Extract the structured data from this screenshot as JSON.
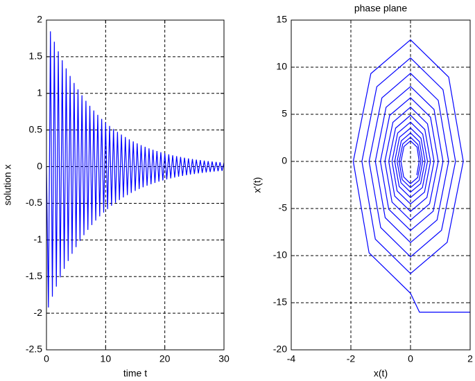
{
  "chart_data": [
    {
      "type": "line",
      "xlabel": "time t",
      "ylabel": "solution x",
      "color": "#0000ff",
      "grid": true,
      "xlim": [
        0,
        30
      ],
      "ylim": [
        -2.5,
        2
      ],
      "xticks": [
        0,
        10,
        20,
        30
      ],
      "yticks": [
        -2.5,
        -2,
        -1.5,
        -1,
        -0.5,
        0,
        0.5,
        1,
        1.5,
        2
      ],
      "x": [
        0,
        0.33,
        0.67,
        1,
        1.33,
        1.67,
        2,
        2.33,
        2.67,
        3,
        3.33,
        3.67,
        4,
        4.33,
        4.67,
        5,
        5.33,
        5.67,
        6,
        6.33,
        6.67,
        7,
        7.33,
        7.67,
        8,
        8.33,
        8.67,
        9,
        9.33,
        9.67,
        10,
        10.33,
        10.67,
        11,
        11.33,
        11.67,
        12,
        12.33,
        12.67,
        13,
        13.33,
        13.67,
        14,
        14.33,
        14.67,
        15,
        15.33,
        15.67,
        16,
        16.33,
        16.67,
        17,
        17.33,
        17.67,
        18,
        18.33,
        18.67,
        19,
        19.33,
        19.67,
        20,
        20.33,
        20.67,
        21,
        21.33,
        21.67,
        22,
        22.33,
        22.67,
        23,
        23.33,
        23.67,
        24,
        24.33,
        24.67,
        25,
        25.33,
        25.67,
        26,
        26.33,
        26.67,
        27,
        27.33,
        27.67,
        28,
        28.33,
        28.67,
        29,
        29.33,
        29.67,
        30
      ],
      "values": [
        0,
        -1.922,
        1.846,
        -1.774,
        1.704,
        -1.637,
        1.573,
        -1.511,
        1.452,
        -1.395,
        1.341,
        -1.288,
        1.238,
        -1.189,
        1.142,
        -1.098,
        1.055,
        -1.013,
        0.974,
        -0.935,
        0.899,
        -0.863,
        0.83,
        -0.797,
        0.766,
        -0.736,
        0.707,
        -0.679,
        0.652,
        -0.627,
        0.602,
        -0.579,
        0.556,
        -0.534,
        0.513,
        -0.493,
        0.474,
        -0.455,
        0.437,
        -0.42,
        0.404,
        -0.388,
        0.373,
        -0.358,
        0.344,
        -0.331,
        0.318,
        -0.305,
        0.293,
        -0.282,
        0.271,
        -0.26,
        0.25,
        -0.24,
        0.231,
        -0.222,
        0.213,
        -0.205,
        0.197,
        -0.189,
        0.181,
        -0.174,
        0.168,
        -0.161,
        0.155,
        -0.149,
        0.143,
        -0.137,
        0.132,
        -0.127,
        0.122,
        -0.117,
        0.112,
        -0.108,
        0.104,
        -0.1,
        0.096,
        -0.092,
        0.089,
        -0.085,
        0.082,
        -0.079,
        0.075,
        -0.073,
        0.07,
        -0.067,
        0.064,
        -0.062,
        0.059,
        -0.057,
        0.055
      ]
    },
    {
      "type": "line",
      "title": "phase plane",
      "xlabel": "x(t)",
      "ylabel": "x'(t)",
      "color": "#0000ff",
      "grid": true,
      "xlim": [
        -4,
        2
      ],
      "ylim": [
        -20,
        15
      ],
      "xticks": [
        -4,
        -2,
        0,
        2
      ],
      "yticks": [
        -20,
        -15,
        -10,
        -5,
        0,
        5,
        10,
        15
      ],
      "x": [
        2,
        0.3,
        0,
        -1.39,
        -1.92,
        -1.33,
        0,
        1.28,
        1.77,
        1.23,
        0,
        -1.18,
        -1.63,
        -1.13,
        0,
        1.09,
        1.51,
        1.04,
        0,
        -1,
        -1.39,
        -0.96,
        0,
        0.93,
        1.28,
        0.89,
        0,
        -0.85,
        -1.18,
        -0.82,
        0,
        0.79,
        1.09,
        0.76,
        0,
        -0.73,
        -1.01,
        -0.7,
        0,
        0.67,
        0.93,
        0.64,
        0,
        -0.62,
        -0.86,
        -0.59,
        0,
        0.57,
        0.79,
        0.55,
        0,
        -0.53,
        -0.73,
        -0.5,
        0,
        0.48,
        0.67,
        0.47,
        0,
        -0.45,
        -0.62,
        -0.43,
        0,
        0.41,
        0.57,
        0.4,
        0,
        -0.38,
        -0.53,
        -0.37,
        0,
        0.35,
        0.49,
        0.34,
        0,
        -0.32,
        -0.45,
        -0.31,
        0,
        0.3,
        0.41,
        0.29,
        0,
        -0.28,
        -0.38,
        -0.26,
        0,
        0.25,
        0.35,
        0.24,
        0,
        -0.23,
        -0.32,
        -0.22,
        0,
        0.22,
        0.29,
        0.21
      ],
      "values": [
        -16,
        -16,
        -14,
        -9.7,
        0,
        9.32,
        12.91,
        8.95,
        0,
        -8.59,
        -11.91,
        -8.25,
        0,
        7.93,
        10.99,
        7.61,
        0,
        -7.31,
        -10.13,
        -7.02,
        0,
        6.74,
        9.35,
        6.48,
        0,
        -6.22,
        -8.62,
        -5.97,
        0,
        5.74,
        7.95,
        5.51,
        0,
        -5.29,
        -7.33,
        -5.08,
        0,
        4.88,
        6.76,
        4.69,
        0,
        -4.5,
        -6.24,
        -4.32,
        0,
        4.15,
        5.76,
        3.99,
        0,
        -3.83,
        -5.31,
        -3.68,
        0,
        3.53,
        4.9,
        3.39,
        0,
        -3.26,
        -4.52,
        -3.13,
        0,
        3.01,
        4.17,
        2.89,
        0,
        -2.77,
        -3.84,
        -2.66,
        0,
        2.56,
        3.54,
        2.46,
        0,
        -2.36,
        -3.27,
        -2.27,
        0,
        2.18,
        3.02,
        2.09,
        0,
        -2.01,
        -2.78,
        -1.93,
        0,
        1.85,
        2.56,
        1.78,
        0,
        -1.71,
        -2.37,
        -1.64,
        0,
        1.58,
        2.18,
        1.51,
        0,
        -1.45
      ]
    }
  ]
}
